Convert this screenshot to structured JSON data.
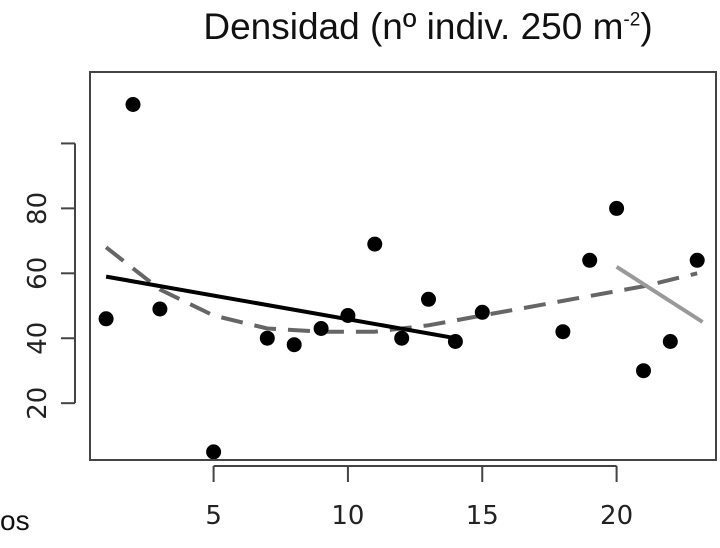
{
  "chart_data": {
    "type": "scatter",
    "title": {
      "main": "Densidad (nº indiv. 250 m",
      "superscript": "-2",
      "close": ")"
    },
    "xlabel": "",
    "ylabel": "",
    "x_ticks": [
      "5",
      "10",
      "15",
      "20"
    ],
    "y_ticks": [
      "20",
      "40",
      "60",
      "80"
    ],
    "xlim": [
      0.4,
      23.7
    ],
    "ylim": [
      2.5,
      122
    ],
    "grid": false,
    "points": [
      {
        "x": 1,
        "y": 46
      },
      {
        "x": 2,
        "y": 112
      },
      {
        "x": 3,
        "y": 49
      },
      {
        "x": 5,
        "y": 5
      },
      {
        "x": 7,
        "y": 40
      },
      {
        "x": 8,
        "y": 38
      },
      {
        "x": 9,
        "y": 43
      },
      {
        "x": 10,
        "y": 47
      },
      {
        "x": 11,
        "y": 69
      },
      {
        "x": 12,
        "y": 40
      },
      {
        "x": 13,
        "y": 52
      },
      {
        "x": 14,
        "y": 39
      },
      {
        "x": 15,
        "y": 48
      },
      {
        "x": 18,
        "y": 42
      },
      {
        "x": 19,
        "y": 64
      },
      {
        "x": 20,
        "y": 80
      },
      {
        "x": 21,
        "y": 30
      },
      {
        "x": 22,
        "y": 39
      },
      {
        "x": 23,
        "y": 64
      }
    ],
    "fits": [
      {
        "style": "dashed",
        "color": "#666666",
        "x": [
          1,
          3,
          5,
          7,
          9,
          11,
          13,
          15,
          17,
          19,
          21,
          23
        ],
        "y": [
          68,
          55,
          47,
          43,
          42,
          42,
          44,
          47,
          50,
          53,
          56,
          60
        ]
      },
      {
        "style": "solid",
        "color": "#000000",
        "x": [
          1,
          14
        ],
        "y": [
          59,
          40
        ]
      },
      {
        "style": "solid",
        "color": "#999999",
        "x": [
          20,
          23.2
        ],
        "y": [
          62,
          45
        ]
      }
    ]
  },
  "fragment_text": "os"
}
